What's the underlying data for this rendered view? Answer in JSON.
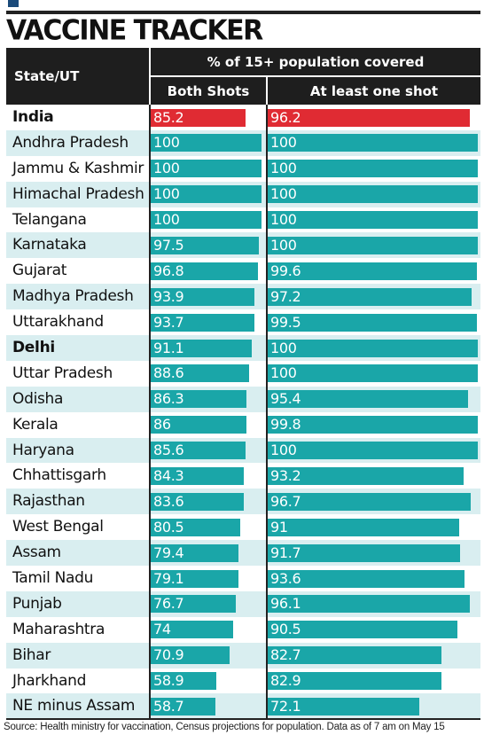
{
  "title": "VACCINE TRACKER",
  "colors": {
    "header": "#1e1e1e",
    "bar": "#1aa6a8",
    "highlight": "#e02b33",
    "alt_row": "#d9eef0"
  },
  "chart_data": {
    "type": "bar",
    "title": "VACCINE TRACKER",
    "group_header": "% of 15+ population covered",
    "category_header": "State/UT",
    "xlim": [
      0,
      100
    ],
    "categories": [
      "India",
      "Andhra Pradesh",
      "Jammu & Kashmir",
      "Himachal Pradesh",
      "Telangana",
      "Karnataka",
      "Gujarat",
      "Madhya Pradesh",
      "Uttarakhand",
      "Delhi",
      "Uttar Pradesh",
      "Odisha",
      "Kerala",
      "Haryana",
      "Chhattisgarh",
      "Rajasthan",
      "West Bengal",
      "Assam",
      "Tamil Nadu",
      "Punjab",
      "Maharashtra",
      "Bihar",
      "Jharkhand",
      "NE minus Assam"
    ],
    "bold_categories": [
      "India",
      "Delhi"
    ],
    "highlight_category": "India",
    "series": [
      {
        "name": "Both Shots",
        "values": [
          85.2,
          100,
          100,
          100,
          100,
          97.5,
          96.8,
          93.9,
          93.7,
          91.1,
          88.6,
          86.3,
          86,
          85.6,
          84.3,
          83.6,
          80.5,
          79.4,
          79.1,
          76.7,
          74,
          70.9,
          58.9,
          58.7
        ]
      },
      {
        "name": "At least one shot",
        "values": [
          96.2,
          100,
          100,
          100,
          100,
          100,
          99.6,
          97.2,
          99.5,
          100,
          100,
          95.4,
          99.8,
          100,
          93.2,
          96.7,
          91,
          91.7,
          93.6,
          96.1,
          90.5,
          82.7,
          82.9,
          72.1
        ]
      }
    ]
  },
  "source": "Source: Health ministry for vaccination, Census projections for population. Data as of 7 am on May 15"
}
